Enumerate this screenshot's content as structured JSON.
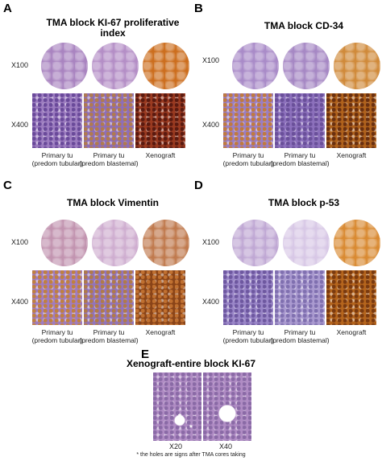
{
  "panels": [
    {
      "label": "A",
      "title": "TMA block KI-67 proliferative index",
      "low_mag": "X100",
      "high_mag": "X400",
      "captions": [
        "Primary tu\n(predom tubular)",
        "Primary tu\n(predom blastemal)",
        "Xenograft"
      ]
    },
    {
      "label": "B",
      "title": "TMA block CD-34",
      "low_mag": "X100",
      "high_mag": "X400",
      "captions": [
        "Primary tu\n(predom tubular)",
        "Primary tu\n(predom blastemal)",
        "Xenograft"
      ]
    },
    {
      "label": "C",
      "title": "TMA block Vimentin",
      "low_mag": "X100",
      "high_mag": "X400",
      "captions": [
        "Primary tu\n(predom tubular)",
        "Primary tu\n(predom blastemal)",
        "Xenograft"
      ]
    },
    {
      "label": "D",
      "title": "TMA block p-53",
      "low_mag": "X100",
      "high_mag": "X400",
      "captions": [
        "Primary tu\n(predom tubular)",
        "Primary tu\n(predom blastemal)",
        "Xenograft"
      ]
    }
  ],
  "panel_e": {
    "label": "E",
    "title": "Xenograft-entire block KI-67",
    "magnifications": [
      "X20",
      "X40"
    ],
    "hole_marker": "*",
    "footnote": "* the holes are signs after TMA cores taking"
  }
}
